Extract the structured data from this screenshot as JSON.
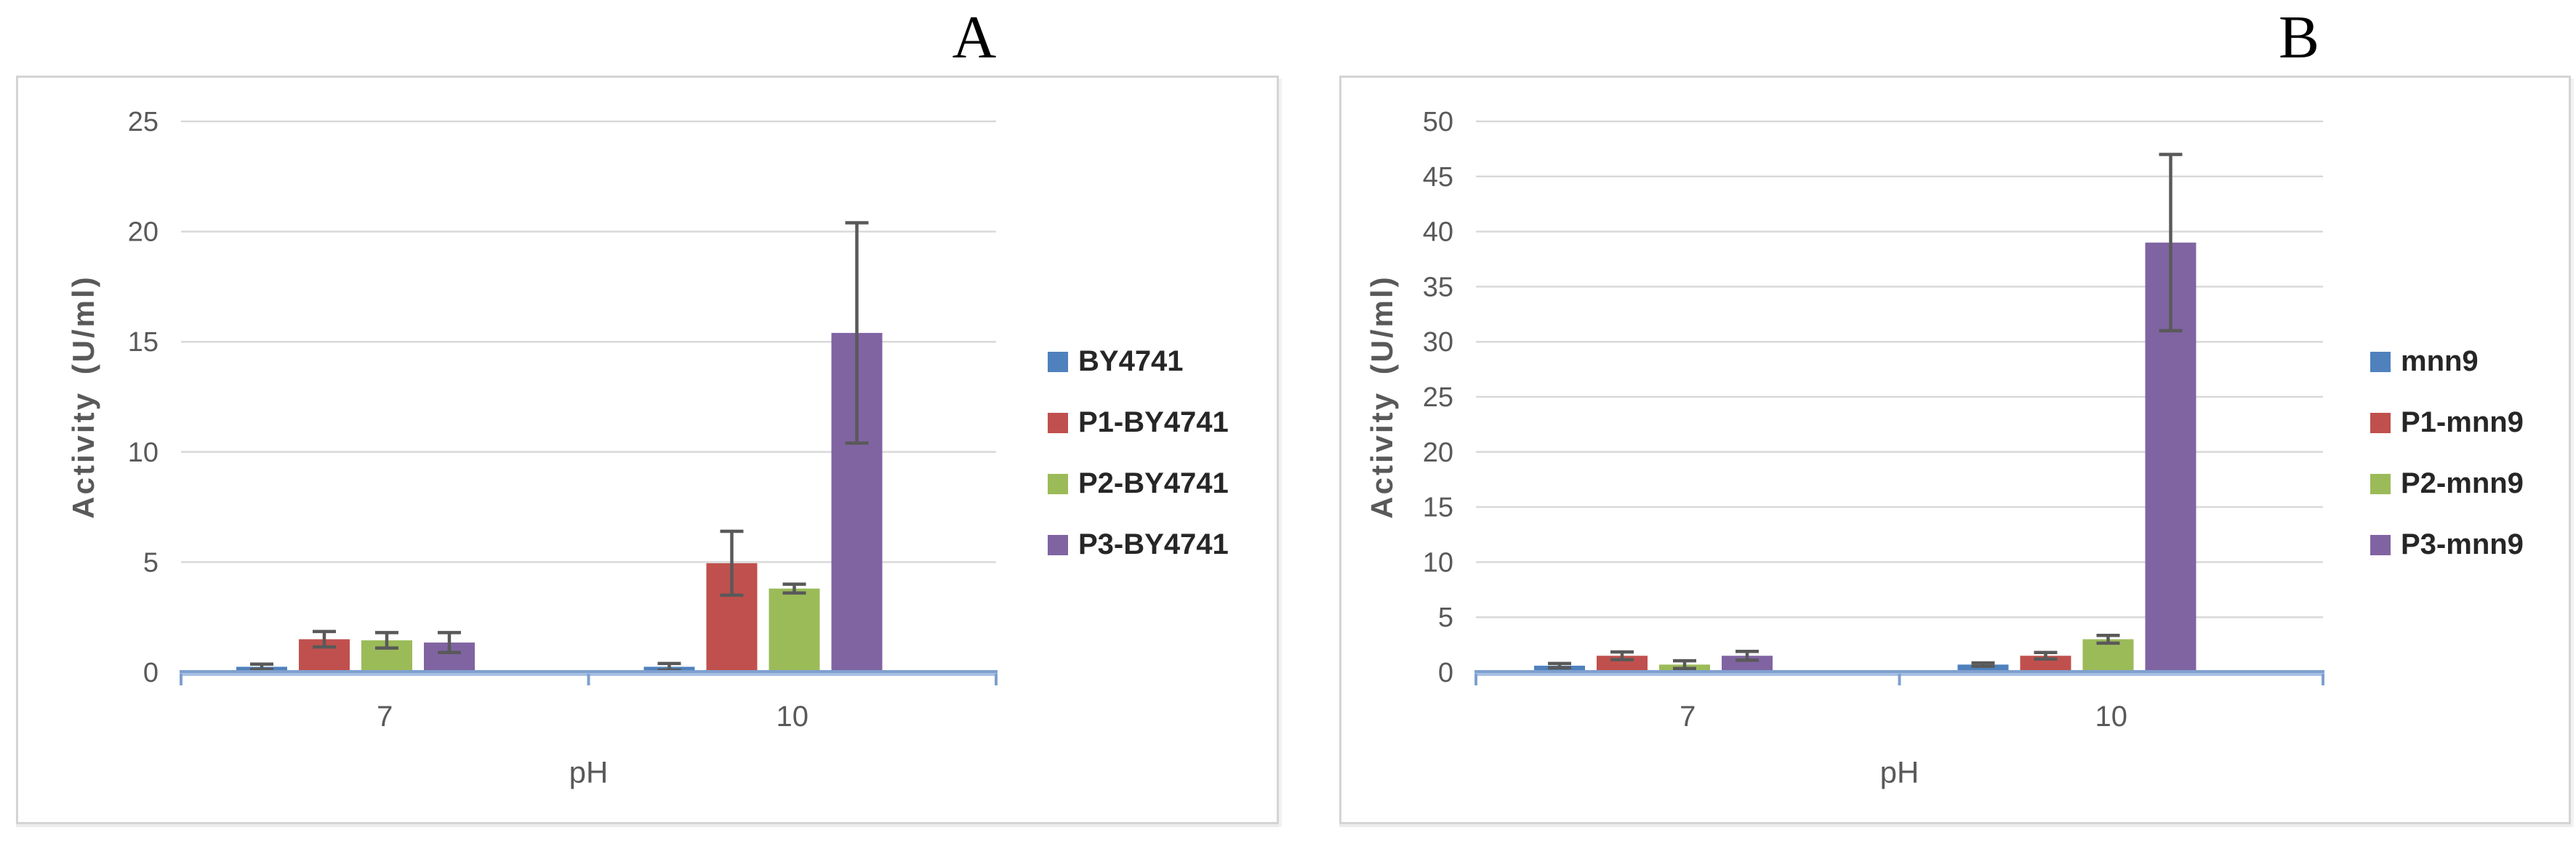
{
  "styles": {
    "background": "#ffffff",
    "grid_color": "#d9d9d9",
    "axis_line_color_top": "#7fa0cf",
    "axis_line_color_bottom": "#a7c0e4",
    "axis_tick_color": "#7fa0cf",
    "error_bar_color": "#595959",
    "tick_text_color": "#595959",
    "axis_title_color": "#595959",
    "legend_text_color": "#262626",
    "panel_border_color": "#d4d4d4",
    "panel_label_color": "#000000"
  },
  "chart_data": [
    {
      "type": "bar",
      "panel_label": "A",
      "title": "",
      "xlabel": "pH",
      "ylabel": "Activity (U/ml)",
      "ylim": [
        0,
        25
      ],
      "ytick_step": 5,
      "grid": true,
      "legend_position": "right",
      "categories": [
        "7",
        "10"
      ],
      "series": [
        {
          "name": "BY4741",
          "color": "#4f81bd",
          "values": [
            0.25,
            0.25
          ],
          "errors": [
            0.12,
            0.15
          ]
        },
        {
          "name": "P1-BY4741",
          "color": "#c0504d",
          "values": [
            1.5,
            4.95
          ],
          "errors": [
            0.35,
            1.45
          ]
        },
        {
          "name": "P2-BY4741",
          "color": "#9bbb59",
          "values": [
            1.45,
            3.8
          ],
          "errors": [
            0.35,
            0.2
          ]
        },
        {
          "name": "P3-BY4741",
          "color": "#8064a2",
          "values": [
            1.35,
            15.4
          ],
          "errors": [
            0.45,
            5.0
          ]
        }
      ]
    },
    {
      "type": "bar",
      "panel_label": "B",
      "title": "",
      "xlabel": "pH",
      "ylabel": "Activity (U/ml)",
      "ylim": [
        0,
        50
      ],
      "ytick_step": 5,
      "grid": true,
      "legend_position": "right",
      "categories": [
        "7",
        "10"
      ],
      "series": [
        {
          "name": "mnn9",
          "color": "#4f81bd",
          "values": [
            0.6,
            0.7
          ],
          "errors": [
            0.2,
            0.15
          ]
        },
        {
          "name": "P1-mnn9",
          "color": "#c0504d",
          "values": [
            1.5,
            1.5
          ],
          "errors": [
            0.35,
            0.3
          ]
        },
        {
          "name": "P2-mnn9",
          "color": "#9bbb59",
          "values": [
            0.7,
            3.0
          ],
          "errors": [
            0.35,
            0.35
          ]
        },
        {
          "name": "P3-mnn9",
          "color": "#8064a2",
          "values": [
            1.5,
            39.0
          ],
          "errors": [
            0.4,
            8.0
          ]
        }
      ]
    }
  ]
}
